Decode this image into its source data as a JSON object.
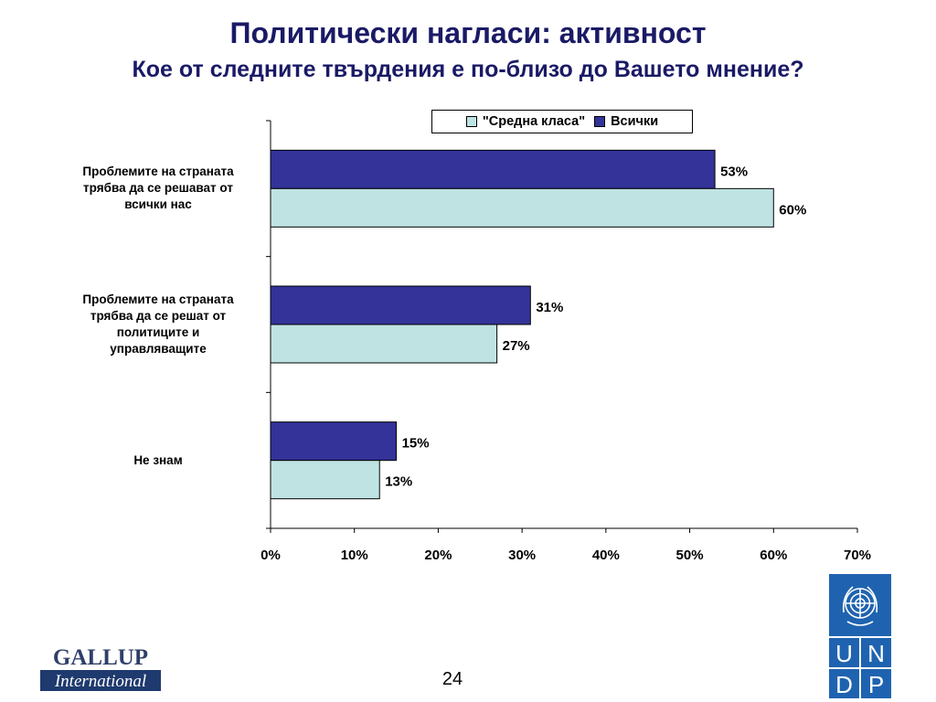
{
  "slide": {
    "title": "Политически нагласи: активност",
    "subtitle": "Кое от следните твърдения е по-близо до Вашето мнение?",
    "page_number": "24"
  },
  "logos": {
    "gallup_line1": "GALLUP",
    "gallup_line2": "International",
    "undp_letters": [
      "U",
      "N",
      "D",
      "P"
    ]
  },
  "colors": {
    "middle_class": "#bfe3e3",
    "all": "#333399",
    "title": "#1a1a66"
  },
  "chart_data": {
    "type": "bar",
    "orientation": "horizontal",
    "categories": [
      "Проблемите на страната трябва да се решават от всички нас",
      "Проблемите на страната трябва да се решат от политиците и управляващите",
      "Не знам"
    ],
    "category_lines": [
      [
        "Проблемите на страната",
        "трябва да се решават от",
        "всички нас"
      ],
      [
        "Проблемите на страната",
        "трябва да се решат от",
        "политиците и",
        "управляващите"
      ],
      [
        "Не знам"
      ]
    ],
    "series": [
      {
        "name": "Всички",
        "values": [
          53,
          31,
          15
        ],
        "labels": [
          "53%",
          "31%",
          "15%"
        ],
        "color": "#333399"
      },
      {
        "name": "\"Средна класа\"",
        "values": [
          60,
          27,
          13
        ],
        "labels": [
          "60%",
          "27%",
          "13%"
        ],
        "color": "#bfe3e3"
      }
    ],
    "legend": {
      "placement": "top-right",
      "entries": [
        "\"Средна класа\"",
        "Всички"
      ]
    },
    "xlim": [
      0,
      70
    ],
    "xticks": [
      0,
      10,
      20,
      30,
      40,
      50,
      60,
      70
    ],
    "xtick_labels": [
      "0%",
      "10%",
      "20%",
      "30%",
      "40%",
      "50%",
      "60%",
      "70%"
    ],
    "grid": false
  }
}
